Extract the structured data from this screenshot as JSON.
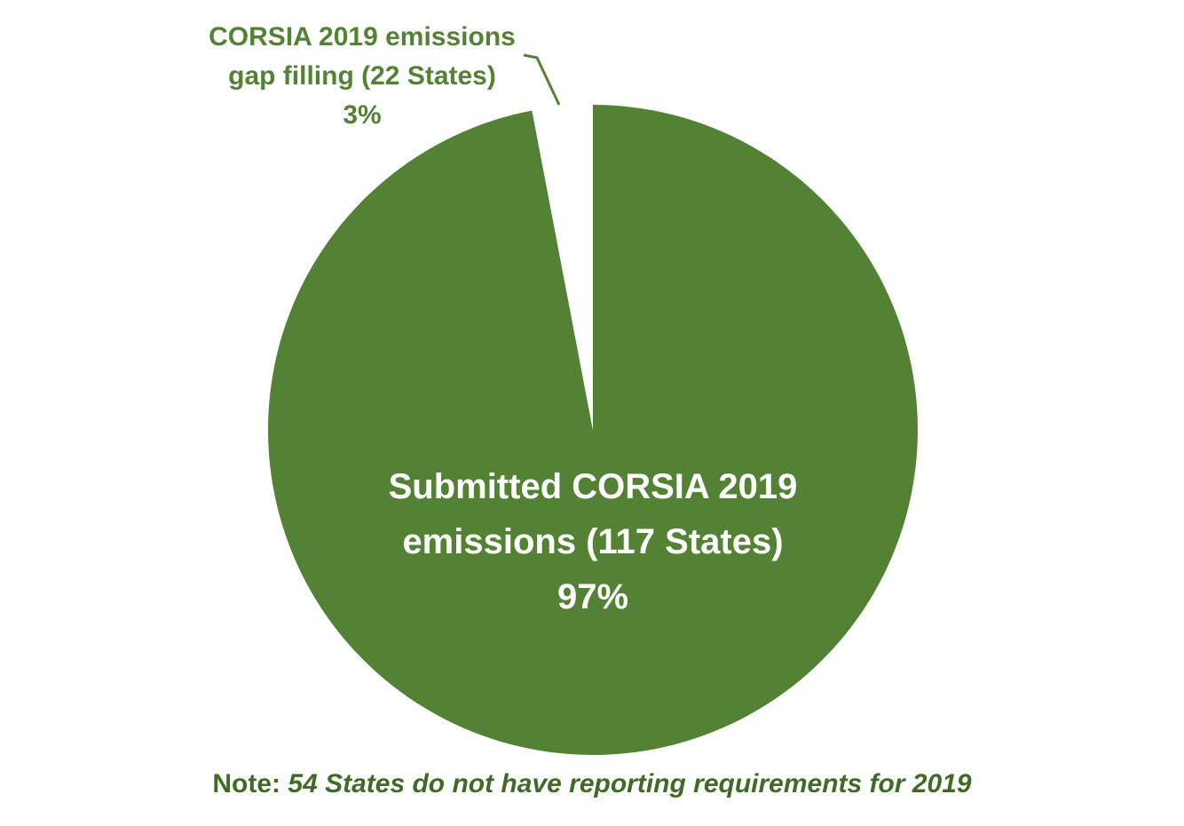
{
  "chart_data": {
    "type": "pie",
    "categories": [
      "Submitted CORSIA 2019 emissions (117 States)",
      "CORSIA 2019 emissions gap filling (22 States)"
    ],
    "values": [
      97,
      3
    ],
    "value_labels": [
      "97%",
      "3%"
    ],
    "colors": [
      "#548235",
      "#ffffff"
    ],
    "note_label": "Note:",
    "note": "54 States do not have reporting requirements for 2019"
  }
}
